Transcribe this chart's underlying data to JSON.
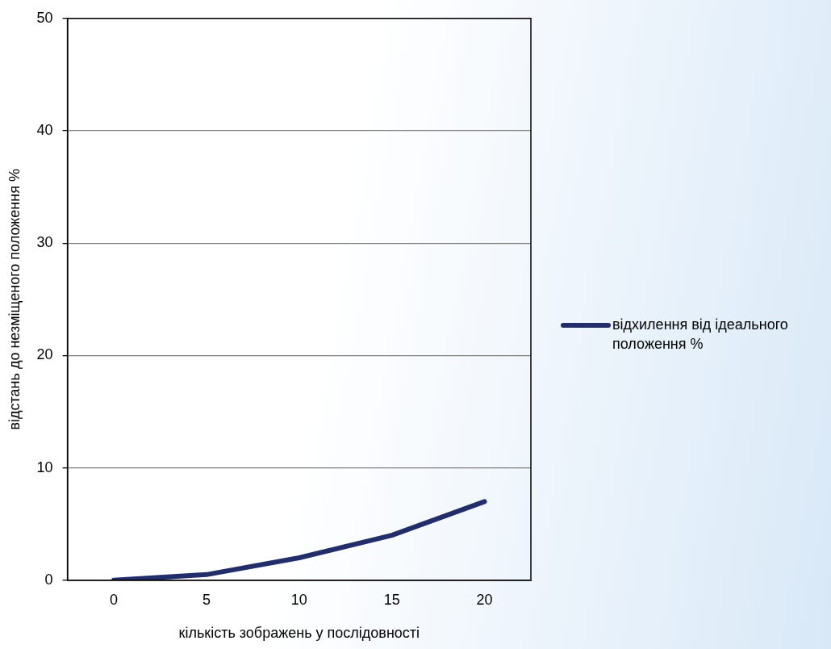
{
  "chart_data": {
    "type": "line",
    "xlabel": "кількість зображень у послідовності",
    "ylabel": "відстань до незміщеного положення %",
    "categories": [
      "0",
      "5",
      "10",
      "15",
      "20"
    ],
    "series": [
      {
        "name": "відхилення від ідеального положення %",
        "color": "#222e6a",
        "values": [
          0,
          0.5,
          2,
          4,
          7
        ]
      }
    ],
    "ylim": [
      0,
      50
    ],
    "yticks": [
      0,
      10,
      20,
      30,
      40,
      50
    ],
    "grid": "y",
    "legend": "right",
    "marker": "none",
    "line_style": "solid"
  }
}
